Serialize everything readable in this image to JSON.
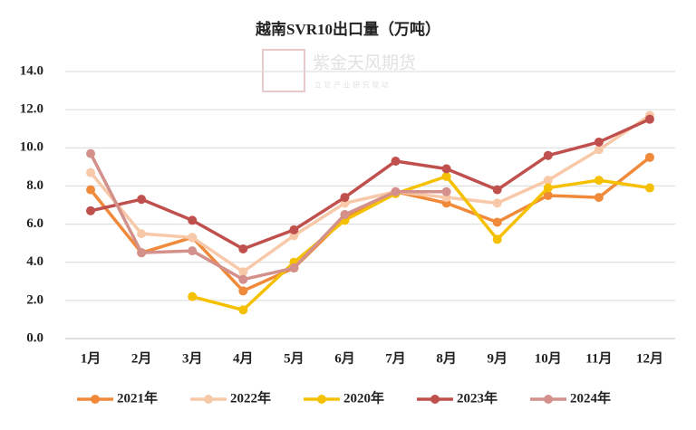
{
  "chart_data": {
    "type": "line",
    "title": "越南SVR10出口量（万吨）",
    "watermark": {
      "name": "紫金天风期货",
      "slogan": "立 足 产 业   研 究 驱 动"
    },
    "categories": [
      "1月",
      "2月",
      "3月",
      "4月",
      "5月",
      "6月",
      "7月",
      "8月",
      "9月",
      "10月",
      "11月",
      "12月"
    ],
    "series": [
      {
        "name": "2021年",
        "color": "#f08a3a",
        "values": [
          7.8,
          4.5,
          5.3,
          2.5,
          3.7,
          6.3,
          7.7,
          7.1,
          6.1,
          7.5,
          7.4,
          9.5
        ]
      },
      {
        "name": "2022年",
        "color": "#f8c9a8",
        "values": [
          8.7,
          5.5,
          5.3,
          3.5,
          5.4,
          7.1,
          7.7,
          7.4,
          7.1,
          8.3,
          9.9,
          11.7
        ]
      },
      {
        "name": "2020年",
        "color": "#f5c000",
        "values": [
          null,
          null,
          2.2,
          1.5,
          4.0,
          6.2,
          7.6,
          8.5,
          5.2,
          7.9,
          8.3,
          7.9
        ]
      },
      {
        "name": "2023年",
        "color": "#c0504d",
        "values": [
          6.7,
          7.3,
          6.2,
          4.7,
          5.7,
          7.4,
          9.3,
          8.9,
          7.8,
          9.6,
          10.3,
          11.5
        ]
      },
      {
        "name": "2024年",
        "color": "#d4908a",
        "values": [
          9.7,
          4.5,
          4.6,
          3.1,
          3.7,
          6.5,
          7.7,
          7.7,
          null,
          null,
          null,
          null
        ]
      }
    ],
    "ylim": [
      0,
      14
    ],
    "yticks": [
      {
        "value": 0,
        "label": "0.0"
      },
      {
        "value": 2,
        "label": "2.0"
      },
      {
        "value": 4,
        "label": "4.0"
      },
      {
        "value": 6,
        "label": "6.0"
      },
      {
        "value": 8,
        "label": "8.0"
      },
      {
        "value": 10,
        "label": "10.0"
      },
      {
        "value": 12,
        "label": "12.0"
      },
      {
        "value": 14,
        "label": "14.0"
      }
    ],
    "grid": true,
    "legend": "bottom"
  }
}
